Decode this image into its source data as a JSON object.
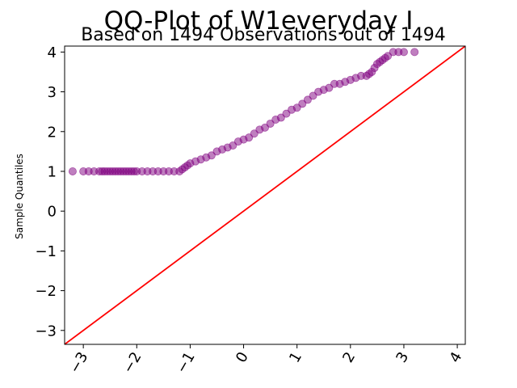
{
  "chart_data": {
    "type": "scatter",
    "title": "QQ-Plot of W1everyday I",
    "subtitle": "Based on 1494 Observations out of 1494",
    "xlabel": "",
    "ylabel": "Sample Quantiles",
    "xlim": [
      -3.35,
      4.15
    ],
    "ylim": [
      -3.35,
      4.15
    ],
    "xticks": [
      -3,
      -2,
      -1,
      0,
      1,
      2,
      3,
      4
    ],
    "xtick_labels": [
      "−3",
      "−2",
      "−1",
      "0",
      "1",
      "2",
      "3",
      "4"
    ],
    "yticks": [
      -3,
      -2,
      -1,
      0,
      1,
      2,
      3,
      4
    ],
    "ytick_labels": [
      "−3",
      "−2",
      "−1",
      "0",
      "1",
      "2",
      "3",
      "4"
    ],
    "grid": false,
    "series": [
      {
        "kind": "points",
        "color": "#800080",
        "x": [
          -3.2,
          -3.0,
          -2.9,
          -2.8,
          -2.7,
          -2.65,
          -2.6,
          -2.55,
          -2.5,
          -2.45,
          -2.4,
          -2.35,
          -2.3,
          -2.25,
          -2.2,
          -2.15,
          -2.1,
          -2.05,
          -2.0,
          -1.9,
          -1.8,
          -1.7,
          -1.6,
          -1.5,
          -1.4,
          -1.3,
          -1.2,
          -1.15,
          -1.1,
          -1.05,
          -1.0,
          -0.9,
          -0.8,
          -0.7,
          -0.6,
          -0.5,
          -0.4,
          -0.3,
          -0.2,
          -0.1,
          0.0,
          0.1,
          0.2,
          0.3,
          0.4,
          0.5,
          0.6,
          0.7,
          0.8,
          0.9,
          1.0,
          1.1,
          1.2,
          1.3,
          1.4,
          1.5,
          1.6,
          1.7,
          1.8,
          1.9,
          2.0,
          2.1,
          2.2,
          2.3,
          2.35,
          2.4,
          2.45,
          2.5,
          2.55,
          2.6,
          2.65,
          2.7,
          2.8,
          2.9,
          3.0,
          3.2
        ],
        "y": [
          1.0,
          1.0,
          1.0,
          1.0,
          1.0,
          1.0,
          1.0,
          1.0,
          1.0,
          1.0,
          1.0,
          1.0,
          1.0,
          1.0,
          1.0,
          1.0,
          1.0,
          1.0,
          1.0,
          1.0,
          1.0,
          1.0,
          1.0,
          1.0,
          1.0,
          1.0,
          1.0,
          1.05,
          1.1,
          1.15,
          1.2,
          1.25,
          1.3,
          1.35,
          1.4,
          1.5,
          1.55,
          1.6,
          1.65,
          1.75,
          1.8,
          1.85,
          1.95,
          2.05,
          2.1,
          2.2,
          2.3,
          2.35,
          2.45,
          2.55,
          2.6,
          2.7,
          2.8,
          2.9,
          3.0,
          3.05,
          3.1,
          3.2,
          3.2,
          3.25,
          3.3,
          3.35,
          3.4,
          3.4,
          3.45,
          3.5,
          3.6,
          3.7,
          3.75,
          3.8,
          3.85,
          3.9,
          4.0,
          4.0,
          4.0,
          4.0
        ]
      },
      {
        "kind": "line",
        "color": "#ff0000",
        "x": [
          -3.35,
          4.15
        ],
        "y": [
          -3.35,
          4.15
        ]
      }
    ]
  }
}
